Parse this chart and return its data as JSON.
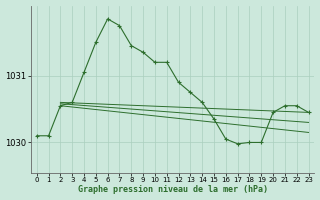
{
  "title": "Graphe pression niveau de la mer (hPa)",
  "background_color": "#cce8dc",
  "grid_color": "#aacfbe",
  "line_color": "#2d6e2d",
  "xlim": [
    -0.5,
    23.5
  ],
  "ylim": [
    1029.55,
    1032.05
  ],
  "yticks": [
    1030,
    1031
  ],
  "xticks": [
    0,
    1,
    2,
    3,
    4,
    5,
    6,
    7,
    8,
    9,
    10,
    11,
    12,
    13,
    14,
    15,
    16,
    17,
    18,
    19,
    20,
    21,
    22,
    23
  ],
  "series1_x": [
    0,
    1,
    2,
    3,
    4,
    5,
    6,
    7,
    8,
    9,
    10,
    11,
    12,
    13,
    14,
    15,
    16,
    17,
    18,
    19,
    20,
    21,
    22,
    23
  ],
  "series1_y": [
    1030.1,
    1030.1,
    1030.55,
    1030.6,
    1031.05,
    1031.5,
    1031.85,
    1031.75,
    1031.45,
    1031.35,
    1031.2,
    1031.2,
    1030.9,
    1030.75,
    1030.6,
    1030.35,
    1030.05,
    1029.98,
    1030.0,
    1030.0,
    1030.45,
    1030.55,
    1030.55,
    1030.45
  ],
  "series2_x": [
    2,
    23
  ],
  "series2_y": [
    1030.6,
    1030.45
  ],
  "series3_x": [
    2,
    23
  ],
  "series3_y": [
    1030.58,
    1030.3
  ],
  "series4_x": [
    2,
    23
  ],
  "series4_y": [
    1030.55,
    1030.15
  ]
}
